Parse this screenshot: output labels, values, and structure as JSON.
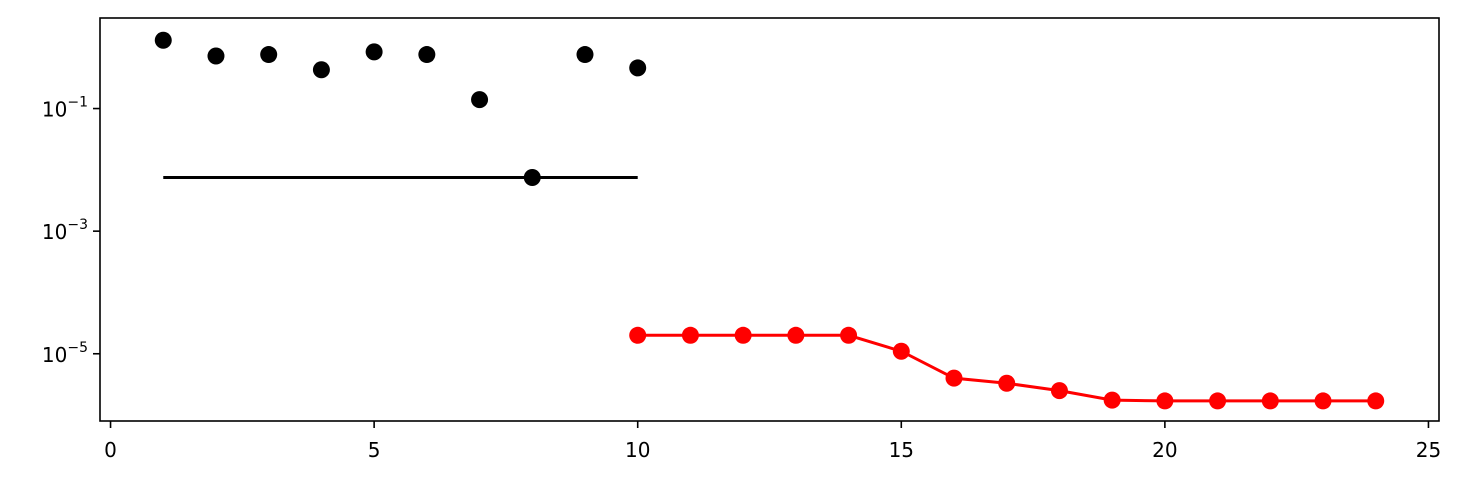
{
  "chart_data": {
    "type": "scatter",
    "title": "",
    "xlabel": "",
    "ylabel": "",
    "xlim": [
      -0.2,
      25.2
    ],
    "ylim": [
      8e-07,
      3
    ],
    "yscale": "log",
    "grid": false,
    "x_ticks": [
      {
        "value": 0,
        "label": "0"
      },
      {
        "value": 5,
        "label": "5"
      },
      {
        "value": 10,
        "label": "10"
      },
      {
        "value": 15,
        "label": "15"
      },
      {
        "value": 20,
        "label": "20"
      },
      {
        "value": 25,
        "label": "25"
      }
    ],
    "y_ticks": [
      {
        "value": 0.1,
        "base": "10",
        "exp": "−1"
      },
      {
        "value": 0.001,
        "base": "10",
        "exp": "−3"
      },
      {
        "value": 1e-05,
        "base": "10",
        "exp": "−5"
      }
    ],
    "series": [
      {
        "type": "scatter",
        "color": "#000000",
        "x": [
          1,
          2,
          3,
          4,
          5,
          6,
          7,
          8,
          9,
          10
        ],
        "y": [
          1.3,
          0.72,
          0.76,
          0.43,
          0.84,
          0.76,
          0.14,
          0.0075,
          0.76,
          0.46
        ]
      },
      {
        "type": "hline",
        "color": "#000000",
        "y": 0.0075,
        "x_start": 1,
        "x_end": 10
      },
      {
        "type": "line-markers",
        "color": "#ff0000",
        "x": [
          10,
          11,
          12,
          13,
          14,
          15,
          16,
          17,
          18,
          19,
          20,
          21,
          22,
          23,
          24
        ],
        "y": [
          2e-05,
          2e-05,
          2e-05,
          2e-05,
          2e-05,
          1.1e-05,
          4e-06,
          3.3e-06,
          2.5e-06,
          1.75e-06,
          1.7e-06,
          1.7e-06,
          1.7e-06,
          1.7e-06,
          1.7e-06
        ]
      }
    ]
  }
}
